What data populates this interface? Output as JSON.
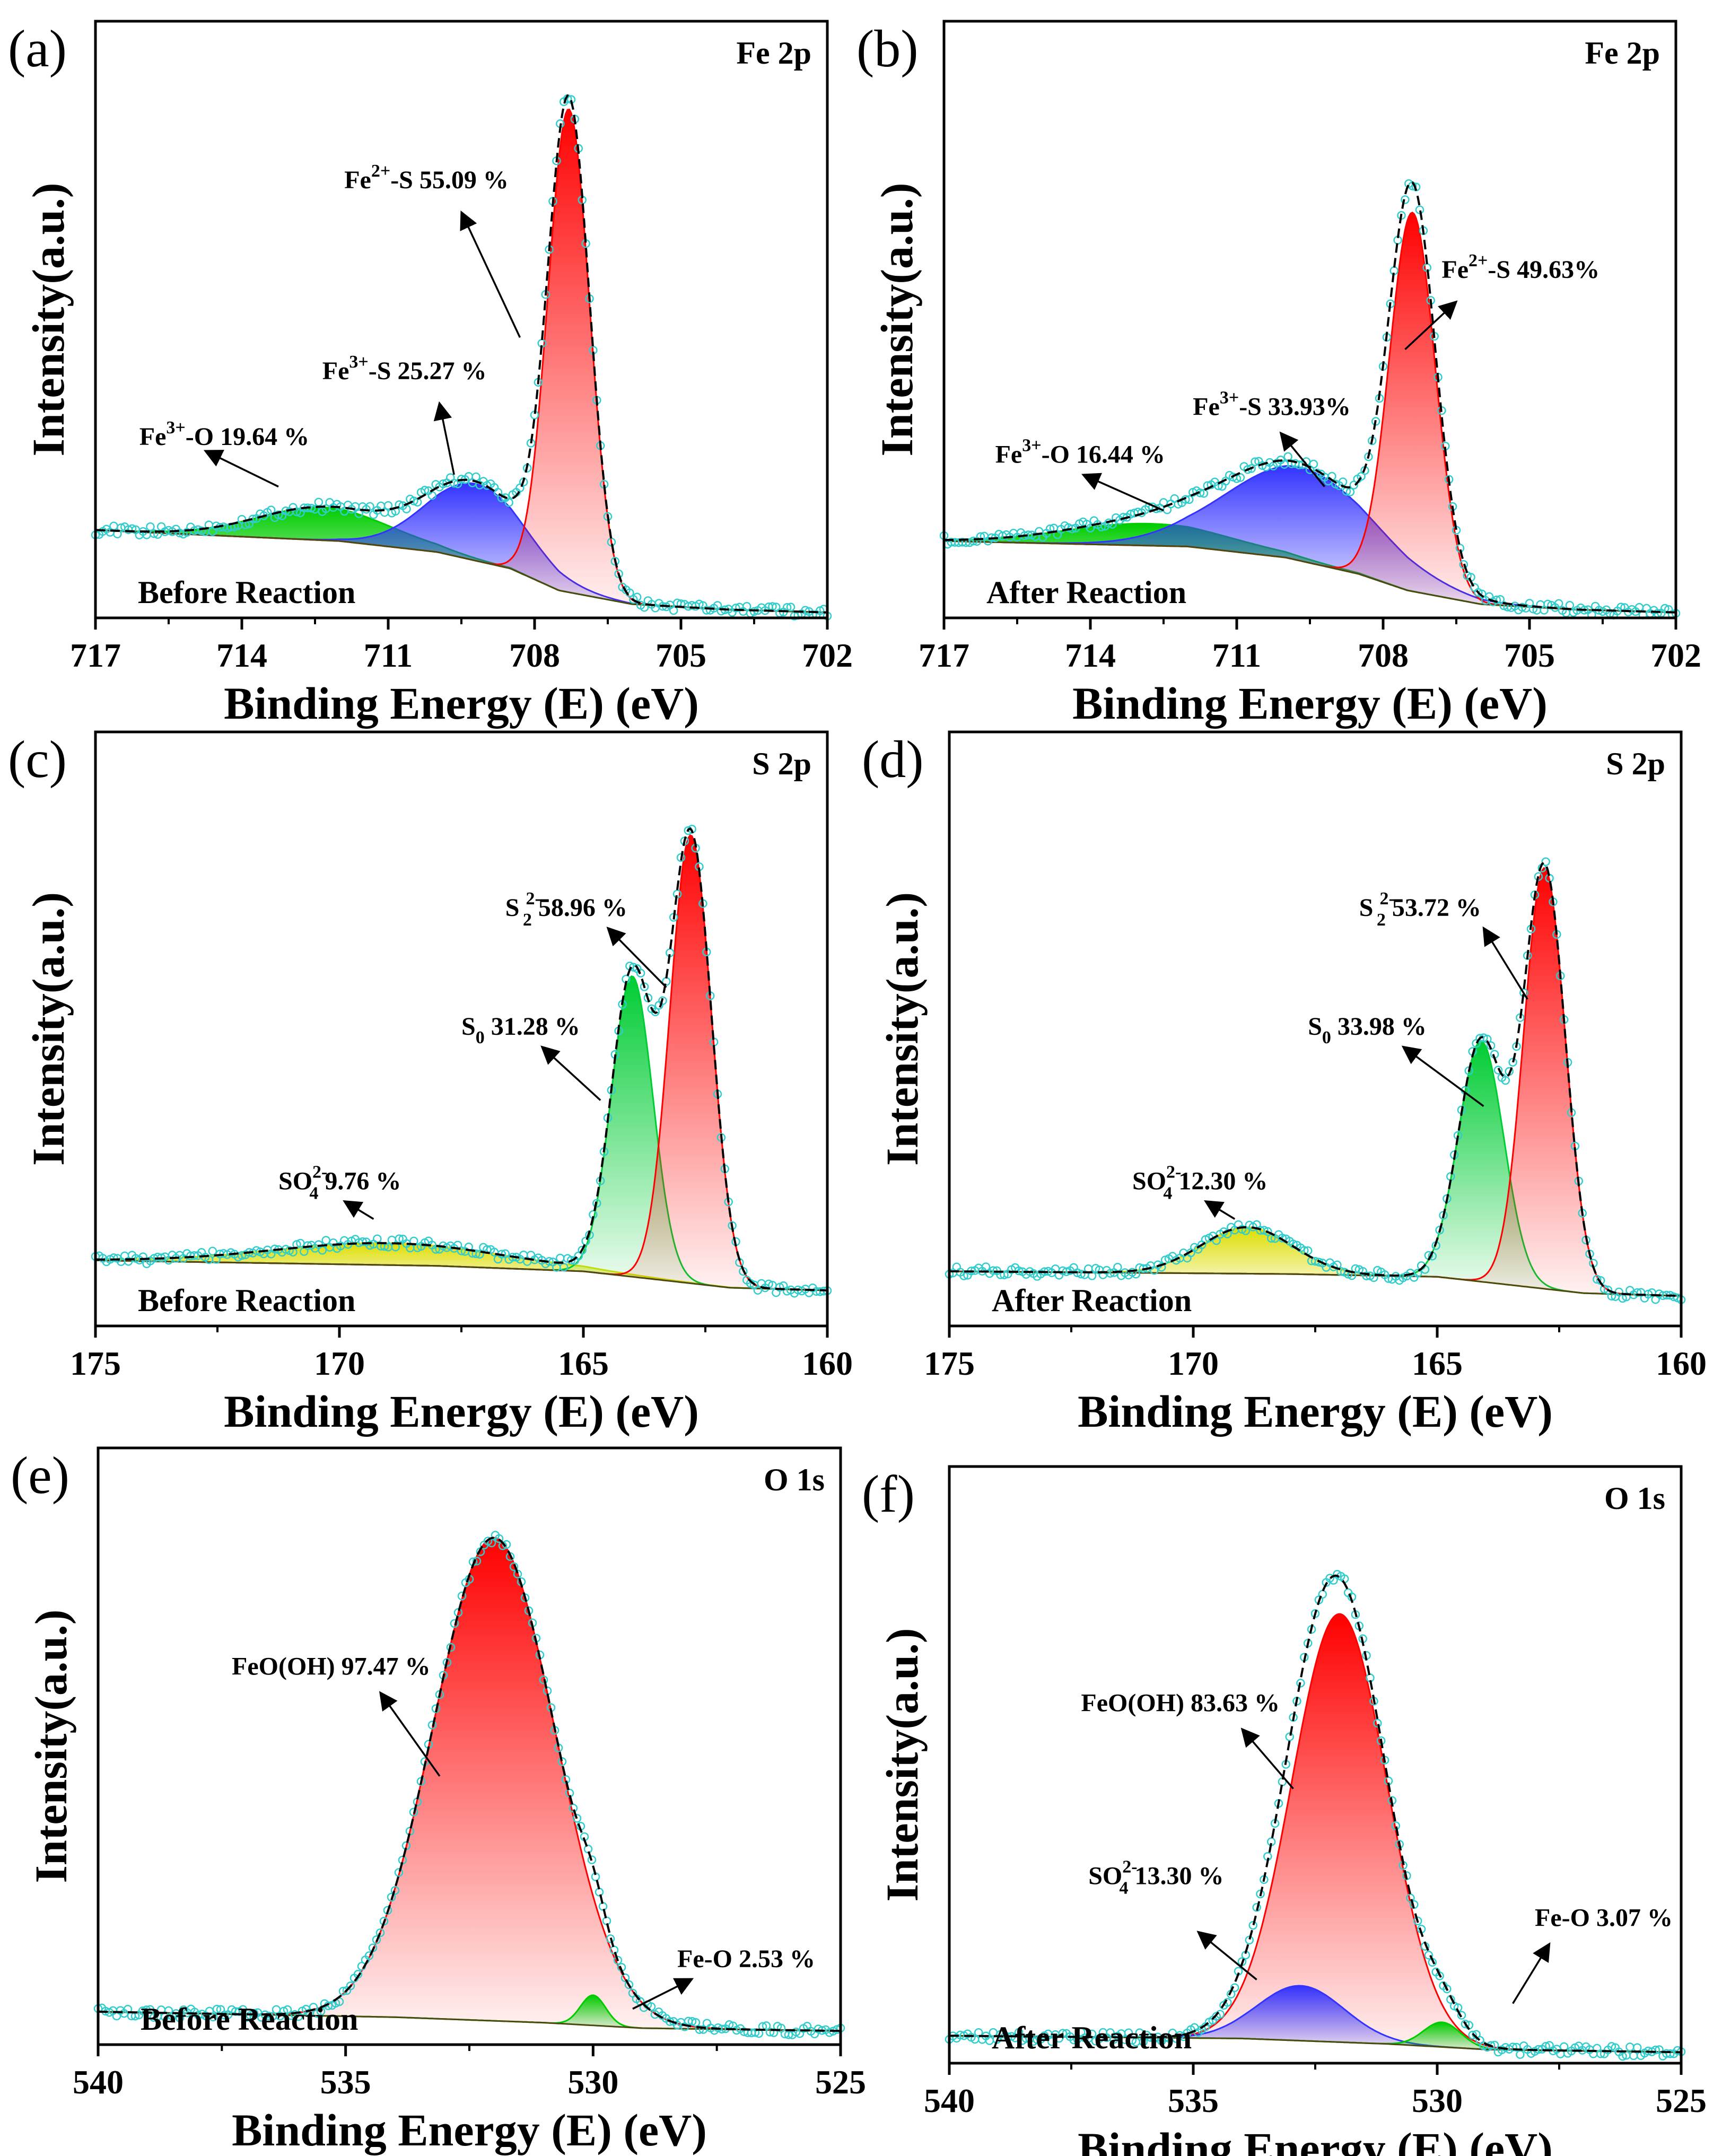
{
  "figure": {
    "chart_data": [
      {
        "id": "a",
        "type": "area",
        "panel_label": "(a)",
        "region": "Fe 2p",
        "condition": "Before Reaction",
        "xlabel": "Binding Energy (E) (eV)",
        "ylabel": "Intensity(a.u.)",
        "xlim": [
          717,
          702
        ],
        "xticks": [
          "717",
          "714",
          "711",
          "708",
          "705",
          "702"
        ],
        "baseline": [
          [
            717,
            0.16
          ],
          [
            712,
            0.14
          ],
          [
            710,
            0.12
          ],
          [
            708.5,
            0.09
          ],
          [
            707.5,
            0.05
          ],
          [
            706,
            0.025
          ],
          [
            704,
            0.015
          ],
          [
            702,
            0.01
          ]
        ],
        "peaks": [
          {
            "label": "Fe3+-O 19.64 %",
            "center": 712.3,
            "fwhm": 3.2,
            "height": 0.06,
            "color": "#00cc00"
          },
          {
            "label": "Fe3+-S 25.27 %",
            "center": 709.2,
            "fwhm": 2.4,
            "height": 0.14,
            "color": "#3333ff"
          },
          {
            "label": "Fe2+-S 55.09 %",
            "center": 707.3,
            "fwhm": 1.0,
            "height": 0.88,
            "color": "#ff0000"
          }
        ],
        "annotations": [
          {
            "pre": "Fe",
            "sup": "3+",
            "post": "-O 19.64 %"
          },
          {
            "pre": "Fe",
            "sup": "3+",
            "post": "-S 25.27 %"
          },
          {
            "pre": "Fe",
            "sup": "2+",
            "post": "-S 55.09 %"
          }
        ]
      },
      {
        "id": "b",
        "type": "area",
        "panel_label": "(b)",
        "region": "Fe 2p",
        "condition": "After Reaction",
        "xlabel": "Binding Energy (E) (eV)",
        "ylabel": "Intensity(a.u.)",
        "xlim": [
          717,
          702
        ],
        "xticks": [
          "717",
          "714",
          "711",
          "708",
          "705",
          "702"
        ],
        "baseline": [
          [
            717,
            0.14
          ],
          [
            712,
            0.13
          ],
          [
            710,
            0.11
          ],
          [
            708.5,
            0.08
          ],
          [
            707.5,
            0.05
          ],
          [
            706,
            0.025
          ],
          [
            704,
            0.015
          ],
          [
            702,
            0.01
          ]
        ],
        "peaks": [
          {
            "label": "Fe3+-O 16.44 %",
            "center": 712.8,
            "fwhm": 4.0,
            "height": 0.04,
            "color": "#00cc00"
          },
          {
            "label": "Fe3+-S 33.93 %",
            "center": 709.7,
            "fwhm": 3.6,
            "height": 0.17,
            "color": "#3333ff"
          },
          {
            "label": "Fe2+-S 49.63 %",
            "center": 707.4,
            "fwhm": 1.1,
            "height": 0.69,
            "color": "#ff0000"
          }
        ],
        "annotations": [
          {
            "pre": "Fe",
            "sup": "3+",
            "post": "-O 16.44 %"
          },
          {
            "pre": "Fe",
            "sup": "3+",
            "post": "-S 33.93%"
          },
          {
            "pre": "Fe",
            "sup": "2+",
            "post": "-S 49.63%"
          }
        ]
      },
      {
        "id": "c",
        "type": "area",
        "panel_label": "(c)",
        "region": "S 2p",
        "condition": "Before Reaction",
        "xlabel": "Binding Energy (E) (eV)",
        "ylabel": "Intensity(a.u.)",
        "xlim": [
          175,
          160
        ],
        "xticks": [
          "175",
          "170",
          "165",
          "160"
        ],
        "baseline": [
          [
            175,
            0.12
          ],
          [
            168,
            0.11
          ],
          [
            165,
            0.1
          ],
          [
            163,
            0.08
          ],
          [
            162,
            0.07
          ],
          [
            160,
            0.065
          ]
        ],
        "peaks": [
          {
            "label": "SO4 2- 9.76 %",
            "center": 169.0,
            "fwhm": 5.5,
            "height": 0.04,
            "color": "#dddd00"
          },
          {
            "label": "S0 31.28 %",
            "center": 164.0,
            "fwhm": 1.0,
            "height": 0.55,
            "color": "#00cc33"
          },
          {
            "label": "S2 2- 58.96 %",
            "center": 162.8,
            "fwhm": 1.0,
            "height": 0.82,
            "color": "#ff0000"
          }
        ],
        "annotations": [
          {
            "pre": "SO",
            "sub": "4",
            "sup": "2-",
            "post": " 9.76 %"
          },
          {
            "pre": "S",
            "sub": "0",
            "post": " 31.28 %"
          },
          {
            "pre": "S ",
            "sub": "2",
            "sup": "2-",
            "post": " 58.96 %"
          }
        ]
      },
      {
        "id": "d",
        "type": "area",
        "panel_label": "(d)",
        "region": "S 2p",
        "condition": "After Reaction",
        "xlabel": "Binding Energy (E) (eV)",
        "ylabel": "Intensity(a.u.)",
        "xlim": [
          175,
          160
        ],
        "xticks": [
          "175",
          "170",
          "165",
          "160"
        ],
        "baseline": [
          [
            175,
            0.1
          ],
          [
            168,
            0.095
          ],
          [
            165,
            0.09
          ],
          [
            163,
            0.07
          ],
          [
            162,
            0.06
          ],
          [
            160,
            0.055
          ]
        ],
        "peaks": [
          {
            "label": "SO4 2- 12.30 %",
            "center": 168.9,
            "fwhm": 2.2,
            "height": 0.085,
            "color": "#dddd00"
          },
          {
            "label": "S0 33.98 %",
            "center": 164.1,
            "fwhm": 1.1,
            "height": 0.44,
            "color": "#00cc33"
          },
          {
            "label": "S2 2- 53.72 %",
            "center": 162.8,
            "fwhm": 1.0,
            "height": 0.77,
            "color": "#ff0000"
          }
        ],
        "annotations": [
          {
            "pre": "SO",
            "sub": "4",
            "sup": "2-",
            "post": " 12.30 %"
          },
          {
            "pre": "S",
            "sub": "0",
            "post": " 33.98 %"
          },
          {
            "pre": "S ",
            "sub": "2",
            "sup": "2-",
            "post": "  53.72 %"
          }
        ]
      },
      {
        "id": "e",
        "type": "area",
        "panel_label": "(e)",
        "region": "O 1s",
        "condition": "Before Reaction",
        "xlabel": "Binding Energy (E) (eV)",
        "ylabel": "Intensity(a.u.)",
        "xlim": [
          540,
          525
        ],
        "xticks": [
          "540",
          "535",
          "530",
          "525"
        ],
        "baseline": [
          [
            540,
            0.06
          ],
          [
            534,
            0.05
          ],
          [
            531,
            0.04
          ],
          [
            529,
            0.03
          ],
          [
            525,
            0.025
          ]
        ],
        "peaks": [
          {
            "label": "FeO(OH) 97.47 %",
            "center": 532.0,
            "fwhm": 2.9,
            "height": 0.88,
            "color": "#ff0000"
          },
          {
            "label": "Fe-O 2.53 %",
            "center": 530.0,
            "fwhm": 0.6,
            "height": 0.055,
            "color": "#00cc00"
          }
        ],
        "annotations": [
          {
            "pre": "FeO(OH) 97.47 %"
          },
          {
            "pre": "Fe-O 2.53 %"
          }
        ]
      },
      {
        "id": "f",
        "type": "area",
        "panel_label": "(f)",
        "region": "O 1s",
        "condition": "After Reaction",
        "xlabel": "Binding Energy (E) (eV)",
        "ylabel": "Intensity(a.u.)",
        "xlim": [
          540,
          525
        ],
        "xticks": [
          "540",
          "535",
          "530",
          "525"
        ],
        "baseline": [
          [
            540,
            0.05
          ],
          [
            534,
            0.045
          ],
          [
            531,
            0.035
          ],
          [
            529,
            0.025
          ],
          [
            525,
            0.02
          ]
        ],
        "peaks": [
          {
            "label": "FeO(OH) 83.63 %",
            "center": 532.0,
            "fwhm": 2.3,
            "height": 0.78,
            "color": "#ff0000"
          },
          {
            "label": "SO4 2- 13.30 %",
            "center": 532.8,
            "fwhm": 2.1,
            "height": 0.1,
            "color": "#3333ff"
          },
          {
            "label": "Fe-O 3.07 %",
            "center": 529.9,
            "fwhm": 0.9,
            "height": 0.045,
            "color": "#00cc00"
          }
        ],
        "annotations": [
          {
            "pre": "FeO(OH) 83.63 %"
          },
          {
            "pre": "SO",
            "sub": "4",
            "sup": "2-",
            "post": "  13.30 %"
          },
          {
            "pre": "Fe-O 3.07 %"
          }
        ]
      }
    ]
  }
}
